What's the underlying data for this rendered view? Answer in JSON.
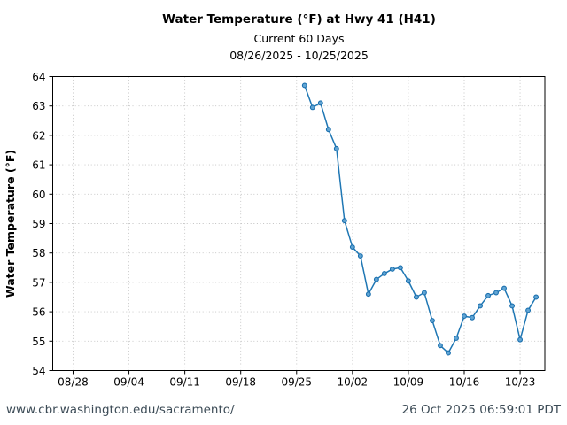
{
  "header": {
    "title": "Water Temperature (°F) at Hwy 41 (H41)",
    "subtitle": "Current 60 Days",
    "date_range": "08/26/2025 - 10/25/2025"
  },
  "footer": {
    "url": "www.cbr.washington.edu/sacramento/",
    "timestamp": "26 Oct 2025 06:59:01 PDT"
  },
  "chart_data": {
    "type": "line",
    "title": "Water Temperature (°F) at Hwy 41 (H41)",
    "subtitle": "Current 60 Days",
    "date_range_label": "08/26/2025 - 10/25/2025",
    "xlabel": "",
    "ylabel": "Water Temperature (°F)",
    "ylim": [
      54,
      64
    ],
    "y_ticks": [
      54,
      55,
      56,
      57,
      58,
      59,
      60,
      61,
      62,
      63,
      64
    ],
    "x_domain_days": [
      -0.55,
      61.1
    ],
    "x_ticks": [
      {
        "label": "08/28",
        "day": 2
      },
      {
        "label": "09/04",
        "day": 9
      },
      {
        "label": "09/11",
        "day": 16
      },
      {
        "label": "09/18",
        "day": 23
      },
      {
        "label": "09/25",
        "day": 30
      },
      {
        "label": "10/02",
        "day": 37
      },
      {
        "label": "10/09",
        "day": 44
      },
      {
        "label": "10/16",
        "day": 51
      },
      {
        "label": "10/23",
        "day": 58
      }
    ],
    "grid": "dotted",
    "legend_position": "none",
    "line_color": "#1f77b4",
    "marker_fill": "#61a5d4",
    "marker_edge": "#1a6fae",
    "series": [
      {
        "name": "water_temperature_f",
        "color": "#1f77b4",
        "points": [
          {
            "date": "09/26",
            "day": 31,
            "value": 63.7
          },
          {
            "date": "09/27",
            "day": 32,
            "value": 62.95
          },
          {
            "date": "09/28",
            "day": 33,
            "value": 63.1
          },
          {
            "date": "09/29",
            "day": 34,
            "value": 62.2
          },
          {
            "date": "09/30",
            "day": 35,
            "value": 61.55
          },
          {
            "date": "10/01",
            "day": 36,
            "value": 59.1
          },
          {
            "date": "10/02",
            "day": 37,
            "value": 58.2
          },
          {
            "date": "10/03",
            "day": 38,
            "value": 57.9
          },
          {
            "date": "10/04",
            "day": 39,
            "value": 56.6
          },
          {
            "date": "10/05",
            "day": 40,
            "value": 57.1
          },
          {
            "date": "10/06",
            "day": 41,
            "value": 57.3
          },
          {
            "date": "10/07",
            "day": 42,
            "value": 57.45
          },
          {
            "date": "10/08",
            "day": 43,
            "value": 57.5
          },
          {
            "date": "10/09",
            "day": 44,
            "value": 57.05
          },
          {
            "date": "10/10",
            "day": 45,
            "value": 56.5
          },
          {
            "date": "10/11",
            "day": 46,
            "value": 56.65
          },
          {
            "date": "10/12",
            "day": 47,
            "value": 55.7
          },
          {
            "date": "10/13",
            "day": 48,
            "value": 54.85
          },
          {
            "date": "10/14",
            "day": 49,
            "value": 54.6
          },
          {
            "date": "10/15",
            "day": 50,
            "value": 55.1
          },
          {
            "date": "10/16",
            "day": 51,
            "value": 55.85
          },
          {
            "date": "10/17",
            "day": 52,
            "value": 55.8
          },
          {
            "date": "10/18",
            "day": 53,
            "value": 56.2
          },
          {
            "date": "10/19",
            "day": 54,
            "value": 56.55
          },
          {
            "date": "10/20",
            "day": 55,
            "value": 56.65
          },
          {
            "date": "10/21",
            "day": 56,
            "value": 56.8
          },
          {
            "date": "10/22",
            "day": 57,
            "value": 56.2
          },
          {
            "date": "10/23",
            "day": 58,
            "value": 55.05
          },
          {
            "date": "10/24",
            "day": 59,
            "value": 56.05
          },
          {
            "date": "10/25",
            "day": 60,
            "value": 56.5
          }
        ]
      }
    ]
  }
}
